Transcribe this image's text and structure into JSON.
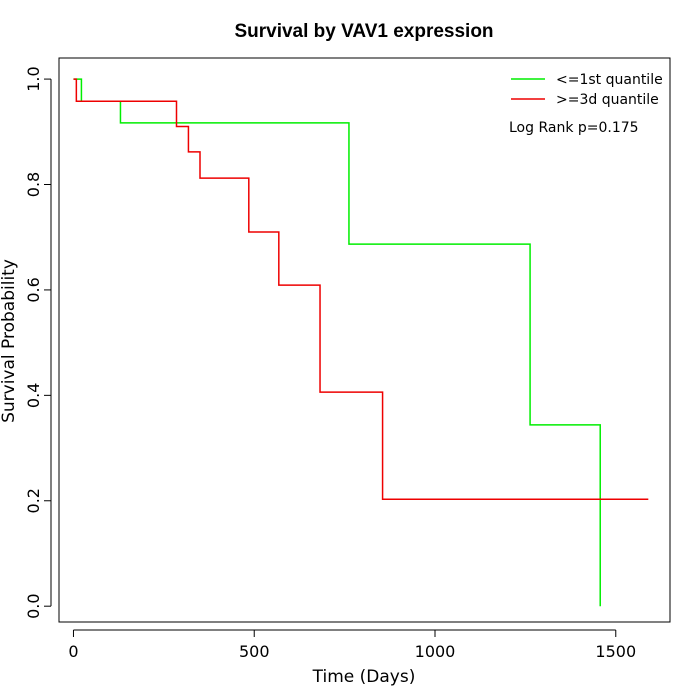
{
  "chart_data": {
    "type": "line",
    "step": true,
    "title": "Survival by VAV1 expression",
    "xlabel": "Time (Days)",
    "ylabel": "Survival Probability",
    "xlim": [
      -40,
      1650
    ],
    "ylim": [
      -0.03,
      1.04
    ],
    "x_ticks": [
      0,
      500,
      1000,
      1500
    ],
    "y_ticks": [
      0.0,
      0.2,
      0.4,
      0.6,
      0.8,
      1.0
    ],
    "x_tick_labels": [
      "0",
      "500",
      "1000",
      "1500"
    ],
    "y_tick_labels": [
      "0.0",
      "0.2",
      "0.4",
      "0.6",
      "0.8",
      "1.0"
    ],
    "legend_position": "top-right",
    "annotation": "Log Rank p=0.175",
    "series": [
      {
        "name": "<=1st quantile",
        "color": "#00ee00",
        "points": [
          [
            0,
            1.0
          ],
          [
            22,
            1.0
          ],
          [
            22,
            0.958
          ],
          [
            130,
            0.958
          ],
          [
            130,
            0.917
          ],
          [
            762,
            0.917
          ],
          [
            762,
            0.687
          ],
          [
            1263,
            0.687
          ],
          [
            1263,
            0.344
          ],
          [
            1457,
            0.344
          ],
          [
            1457,
            0.0
          ]
        ]
      },
      {
        "name": ">=3d quantile",
        "color": "#ee0000",
        "points": [
          [
            0,
            1.0
          ],
          [
            8,
            1.0
          ],
          [
            8,
            0.958
          ],
          [
            285,
            0.958
          ],
          [
            285,
            0.91
          ],
          [
            318,
            0.91
          ],
          [
            318,
            0.862
          ],
          [
            350,
            0.862
          ],
          [
            350,
            0.812
          ],
          [
            485,
            0.812
          ],
          [
            485,
            0.71
          ],
          [
            568,
            0.71
          ],
          [
            568,
            0.609
          ],
          [
            682,
            0.609
          ],
          [
            682,
            0.406
          ],
          [
            855,
            0.406
          ],
          [
            855,
            0.203
          ],
          [
            1590,
            0.203
          ]
        ]
      }
    ]
  }
}
